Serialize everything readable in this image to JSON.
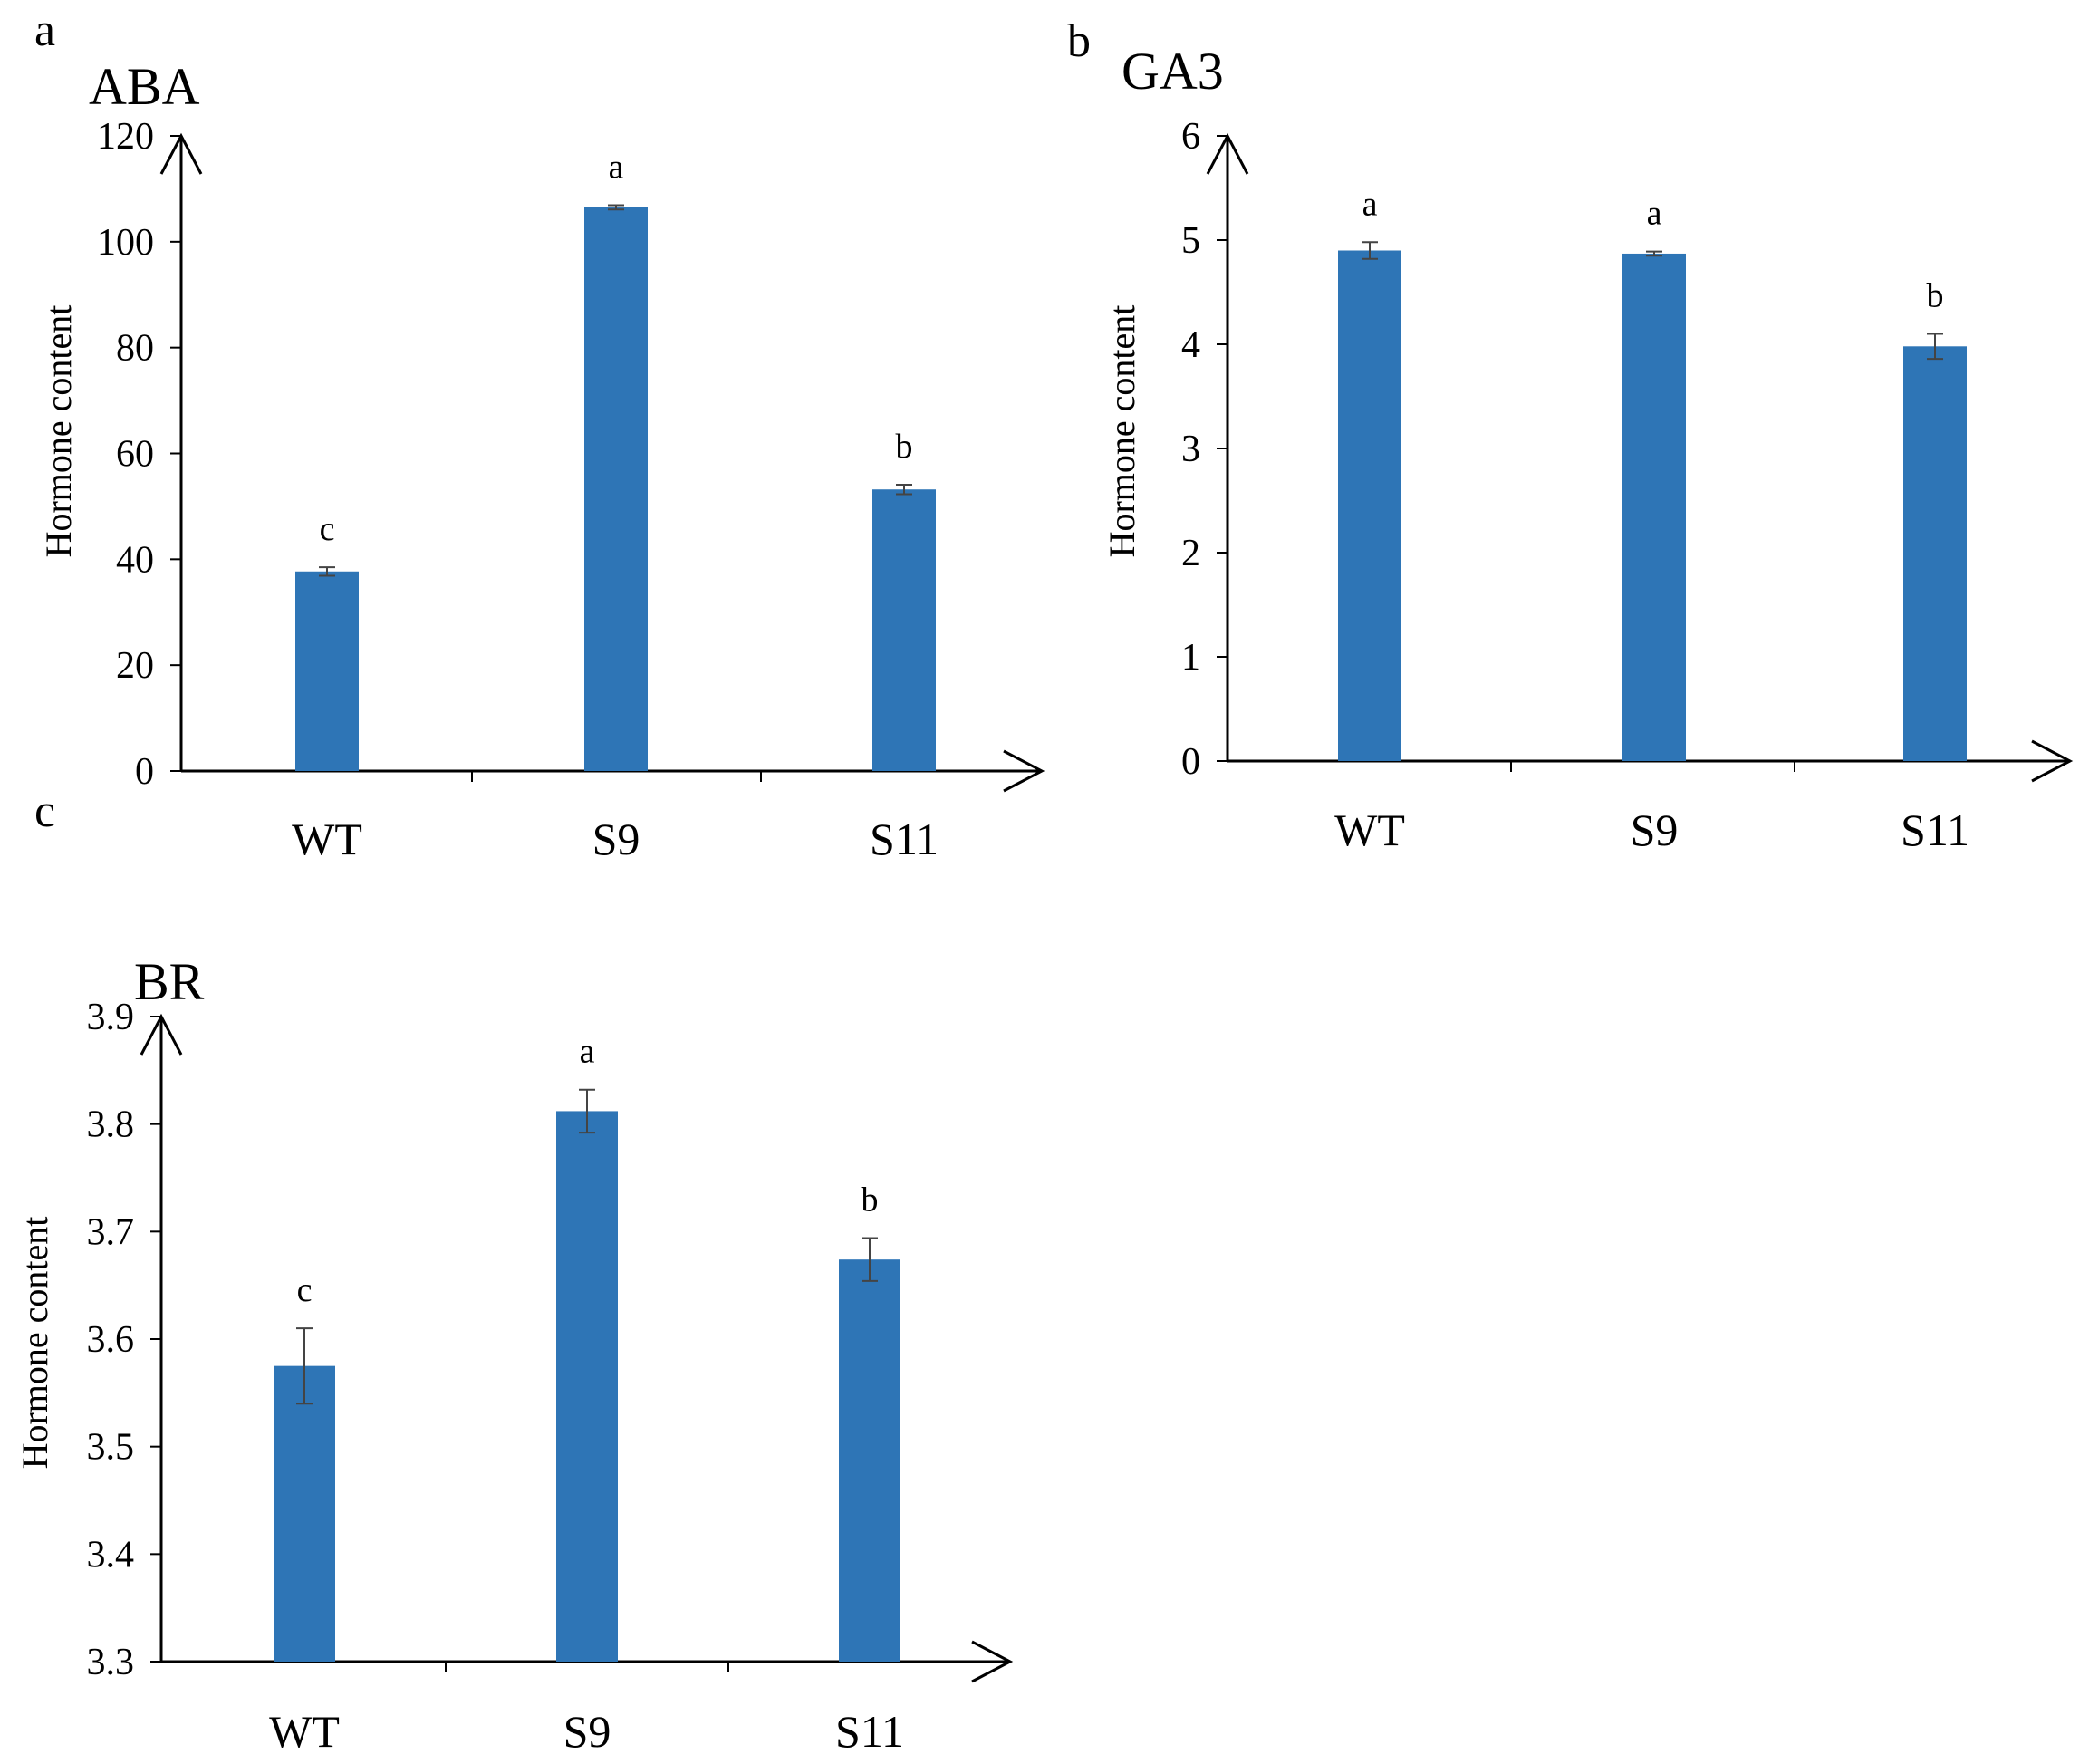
{
  "chart_data": [
    {
      "id": "panel-a",
      "panel_label": "a",
      "type": "bar",
      "title": "ABA",
      "ylabel": "Hormone content",
      "xlabel": "",
      "categories": [
        "WT",
        "S9",
        "S11"
      ],
      "values": [
        37.7,
        106.5,
        53.2
      ],
      "errors": [
        0.8,
        0.4,
        0.9
      ],
      "significance": [
        "c",
        "a",
        "b"
      ],
      "ylim": [
        0,
        120
      ],
      "yticks": [
        0,
        20,
        40,
        60,
        80,
        100,
        120
      ],
      "ytick_labels": [
        "0",
        "20",
        "40",
        "60",
        "80",
        "100",
        "120"
      ],
      "bar_color": "#2e75b6",
      "grid": false
    },
    {
      "id": "panel-b",
      "panel_label": "b",
      "type": "bar",
      "title": "GA3",
      "ylabel": "Hormone content",
      "xlabel": "",
      "categories": [
        "WT",
        "S9",
        "S11"
      ],
      "values": [
        4.9,
        4.87,
        3.98
      ],
      "errors": [
        0.08,
        0.02,
        0.12
      ],
      "significance": [
        "a",
        "a",
        "b"
      ],
      "ylim": [
        0,
        6
      ],
      "yticks": [
        0,
        1,
        2,
        3,
        4,
        5,
        6
      ],
      "ytick_labels": [
        "0",
        "1",
        "2",
        "3",
        "4",
        "5",
        "6"
      ],
      "bar_color": "#2e75b6",
      "grid": false
    },
    {
      "id": "panel-c",
      "panel_label": "c",
      "type": "bar",
      "title": "BR",
      "ylabel": "Hormone content",
      "xlabel": "",
      "categories": [
        "WT",
        "S9",
        "S11"
      ],
      "values": [
        3.575,
        3.812,
        3.674
      ],
      "errors": [
        0.035,
        0.02,
        0.02
      ],
      "significance": [
        "c",
        "a",
        "b"
      ],
      "ylim": [
        3.3,
        3.9
      ],
      "yticks": [
        3.3,
        3.4,
        3.5,
        3.6,
        3.7,
        3.8,
        3.9
      ],
      "ytick_labels": [
        "3.3",
        "3.4",
        "3.5",
        "3.6",
        "3.7",
        "3.8",
        "3.9"
      ],
      "bar_color": "#2e75b6",
      "grid": false
    }
  ]
}
